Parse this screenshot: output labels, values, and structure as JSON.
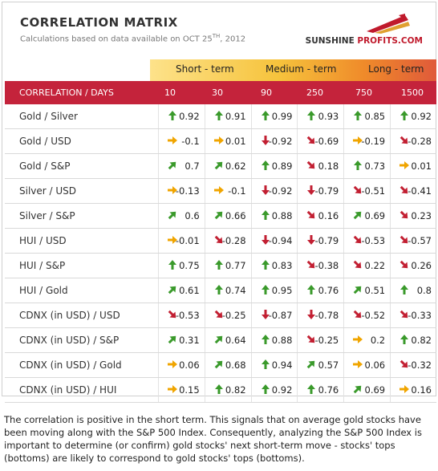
{
  "header": {
    "title": "CORRELATION MATRIX",
    "subtitle_prefix": "Calculations based on data available on  OCT 25",
    "subtitle_sup": "TH",
    "subtitle_suffix": ", 2012",
    "logo_part1": "SUNSHINE",
    "logo_part2": " PROFITS.COM"
  },
  "bands": {
    "short": "Short - term",
    "medium": "Medium - term",
    "long": "Long - term"
  },
  "table_header": {
    "label": "CORRELATION / DAYS",
    "days": [
      "10",
      "30",
      "90",
      "250",
      "750",
      "1500"
    ]
  },
  "colors": {
    "up": "#3a9a2b",
    "down": "#c21f32",
    "neutral": "#f0a500"
  },
  "chart_data": {
    "type": "table",
    "title": "CORRELATION MATRIX",
    "columns": [
      "10",
      "30",
      "90",
      "250",
      "750",
      "1500"
    ],
    "rows": [
      {
        "pair": "Gold / Silver",
        "values": [
          "0.92",
          "0.91",
          "0.99",
          "0.93",
          "0.85",
          "0.92"
        ],
        "arrows": [
          "up",
          "up",
          "up",
          "up",
          "up",
          "up"
        ]
      },
      {
        "pair": "Gold / USD",
        "values": [
          "-0.1",
          "0.01",
          "-0.92",
          "-0.69",
          "-0.19",
          "-0.28"
        ],
        "arrows": [
          "right",
          "right",
          "down",
          "down-right",
          "right",
          "down-right"
        ]
      },
      {
        "pair": "Gold / S&P",
        "values": [
          "0.7",
          "0.62",
          "0.89",
          "0.18",
          "0.73",
          "0.01"
        ],
        "arrows": [
          "up-right",
          "up-right",
          "up",
          "down-right",
          "up",
          "right"
        ]
      },
      {
        "pair": "Silver / USD",
        "values": [
          "-0.13",
          "-0.1",
          "-0.92",
          "-0.79",
          "-0.51",
          "-0.41"
        ],
        "arrows": [
          "right",
          "right",
          "down",
          "down",
          "down-right",
          "down-right"
        ]
      },
      {
        "pair": "Silver / S&P",
        "values": [
          "0.6",
          "0.66",
          "0.88",
          "0.16",
          "0.69",
          "0.23"
        ],
        "arrows": [
          "up-right",
          "up-right",
          "up",
          "down-right",
          "up-right",
          "down-right"
        ]
      },
      {
        "pair": "HUI / USD",
        "values": [
          "-0.01",
          "-0.28",
          "-0.94",
          "-0.79",
          "-0.53",
          "-0.57"
        ],
        "arrows": [
          "right",
          "down-right",
          "down",
          "down",
          "down-right",
          "down-right"
        ]
      },
      {
        "pair": "HUI / S&P",
        "values": [
          "0.75",
          "0.77",
          "0.83",
          "-0.38",
          "0.22",
          "0.26"
        ],
        "arrows": [
          "up",
          "up",
          "up",
          "down-right",
          "down-right",
          "down-right"
        ]
      },
      {
        "pair": "HUI / Gold",
        "values": [
          "0.61",
          "0.74",
          "0.95",
          "0.76",
          "0.51",
          "0.8"
        ],
        "arrows": [
          "up-right",
          "up",
          "up",
          "up",
          "up-right",
          "up"
        ]
      },
      {
        "pair": "CDNX (in USD) / USD",
        "values": [
          "-0.53",
          "-0.25",
          "-0.87",
          "-0.78",
          "-0.52",
          "-0.33"
        ],
        "arrows": [
          "down-right",
          "down-right",
          "down",
          "down",
          "down-right",
          "down-right"
        ]
      },
      {
        "pair": "CDNX (in USD) / S&P",
        "values": [
          "0.31",
          "0.64",
          "0.88",
          "-0.25",
          "0.2",
          "0.82"
        ],
        "arrows": [
          "up-right",
          "up-right",
          "up",
          "down-right",
          "right",
          "up"
        ]
      },
      {
        "pair": "CDNX (in USD) / Gold",
        "values": [
          "0.06",
          "0.68",
          "0.94",
          "0.57",
          "0.06",
          "-0.32"
        ],
        "arrows": [
          "right",
          "up-right",
          "up",
          "up-right",
          "right",
          "down-right"
        ]
      },
      {
        "pair": "CDNX (in USD) / HUI",
        "values": [
          "0.15",
          "0.82",
          "0.92",
          "0.76",
          "0.69",
          "0.16"
        ],
        "arrows": [
          "right",
          "up",
          "up",
          "up",
          "up-right",
          "right"
        ]
      }
    ]
  },
  "note": "The correlation is positive in the short term. This signals that on average gold stocks have been moving along with the S&P 500 Index. Consequently, analyzing the S&P 500 Index is important to determine (or confirm) gold stocks' next short-term move - stocks' tops (bottoms) are likely to correspond to gold stocks' tops (bottoms)."
}
